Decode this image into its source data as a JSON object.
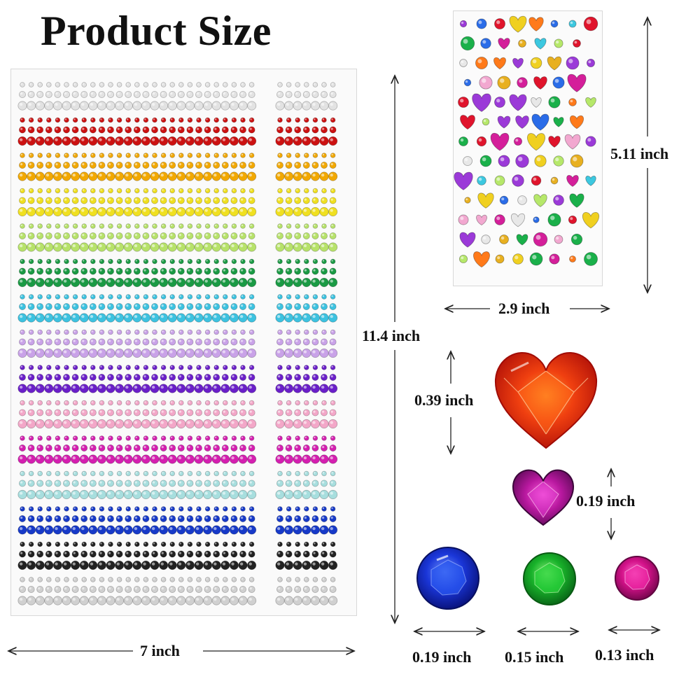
{
  "title": "Product Size",
  "dimensions": {
    "big_sheet_width": "7 inch",
    "big_sheet_height": "11.4 inch",
    "small_sheet_height": "5.11 inch",
    "small_sheet_width": "2.9 inch",
    "large_heart": "0.39 inch",
    "small_heart": "0.19 inch",
    "blue_gem": "0.19 inch",
    "green_gem": "0.15 inch",
    "pink_gem": "0.13 inch"
  },
  "colors": {
    "row_colors": [
      "#e2e2e2",
      "#cc1111",
      "#f2a800",
      "#f0e020",
      "#b7e26a",
      "#1a9a44",
      "#3cc2e0",
      "#c9a2e8",
      "#6a1fc9",
      "#f3a7c8",
      "#d41fb0",
      "#a7dede",
      "#1639c8",
      "#222222",
      "#d0d0d0"
    ],
    "heart_red": "#e52914",
    "heart_purple": "#a0139a",
    "gem_blue": "#1a32d0",
    "gem_green": "#18b22a",
    "gem_pink": "#d4128a"
  }
}
